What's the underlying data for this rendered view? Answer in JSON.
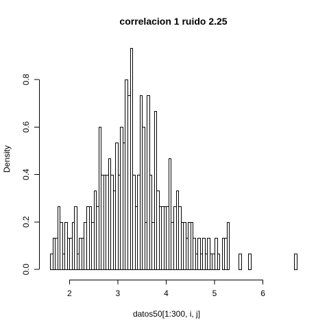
{
  "chart_data": {
    "type": "bar",
    "title": "correlacion 1 ruido 2.25",
    "xlabel": "datos50[1:300, i, j]",
    "ylabel": "Density",
    "xlim": [
      1.4,
      6.8
    ],
    "ylim": [
      0,
      0.93
    ],
    "xticks": [
      "2",
      "3",
      "4",
      "5",
      "6"
    ],
    "yticks": [
      "0.0",
      "0.2",
      "0.4",
      "0.6",
      "0.8"
    ],
    "grid": false,
    "bin_width": 0.05,
    "bins_start": 1.6,
    "values": [
      0.0667,
      0.1333,
      0.1333,
      0.2667,
      0.2,
      0.0667,
      0.2,
      0.1333,
      0.1333,
      0.2,
      0.2667,
      0.0667,
      0.1333,
      0.1333,
      0.2,
      0.2667,
      0.2667,
      0.2,
      0.3333,
      0.2667,
      0.6,
      0.4,
      0.4,
      0.4,
      0.4667,
      0.4,
      0.3333,
      0.5333,
      0.4,
      0.6,
      0.5333,
      0.8,
      0.7333,
      0.9333,
      0.4,
      0.2667,
      0.4,
      0.7333,
      0.6,
      0.2,
      0.7333,
      0.4,
      0.2,
      0.6667,
      0.3333,
      0.2667,
      0.2667,
      0.2667,
      0.2667,
      0.4667,
      0.2,
      0.2667,
      0.3333,
      0.2667,
      0.2,
      0.2,
      0.1333,
      0.2,
      0.2,
      0.1333,
      0.0667,
      0.1333,
      0.0667,
      0.1333,
      0.0667,
      0.1333,
      0.0667,
      0.0667,
      0.1333,
      0.0667,
      0,
      0.1333,
      0,
      0.0667,
      0,
      0.0667,
      0,
      0.1333,
      0.1333,
      0,
      0,
      0,
      0,
      0,
      0,
      0.0667,
      0,
      0.0667,
      0.0,
      0.0667,
      0,
      0,
      0,
      0,
      0,
      0,
      0,
      0,
      0,
      0,
      0,
      0,
      0.0667
    ],
    "extra_bins": [
      {
        "x0": 4.95,
        "value": 0.0
      },
      {
        "x0": 5.15,
        "value": 0.1333
      },
      {
        "x0": 5.2,
        "value": 0.1333
      },
      {
        "x0": 5.25,
        "value": 0.2
      },
      {
        "x0": 5.3,
        "value": 0.0
      },
      {
        "x0": 5.35,
        "value": 0.0
      },
      {
        "x0": 5.4,
        "value": 0.0
      },
      {
        "x0": 5.45,
        "value": 0.0
      },
      {
        "x0": 5.5,
        "value": 0.0667
      },
      {
        "x0": 5.55,
        "value": 0.0
      },
      {
        "x0": 5.6,
        "value": 0.0
      },
      {
        "x0": 5.65,
        "value": 0.0
      },
      {
        "x0": 5.7,
        "value": 0.0667
      },
      {
        "x0": 6.65,
        "value": 0.0667
      }
    ]
  }
}
